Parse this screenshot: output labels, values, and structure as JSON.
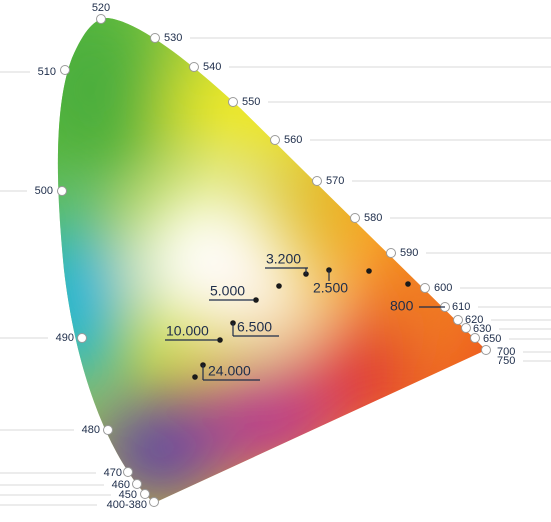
{
  "wavelength_labels": [
    "520",
    "530",
    "540",
    "550",
    "560",
    "570",
    "580",
    "590",
    "600",
    "610",
    "620",
    "630",
    "650",
    "700",
    "750",
    "510",
    "500",
    "490",
    "480",
    "470",
    "460",
    "450",
    "400-380"
  ],
  "temperature_labels": [
    "3.200",
    "2.500",
    "5.000",
    "6.500",
    "10.000",
    "24.000",
    "800"
  ]
}
